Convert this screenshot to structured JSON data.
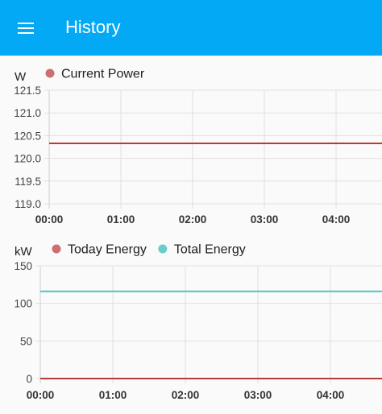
{
  "header": {
    "title": "History",
    "menu_icon": "menu-icon",
    "background": "#03a9f4"
  },
  "charts": [
    {
      "type": "line",
      "unit": "W",
      "x": [
        "00:00",
        "01:00",
        "02:00",
        "03:00",
        "04:00"
      ],
      "ylim": [
        119.0,
        121.5
      ],
      "yticks": [
        "119.0",
        "119.5",
        "120.0",
        "120.5",
        "121.0",
        "121.5"
      ],
      "series": [
        {
          "name": "Current Power",
          "color": "#c0392b",
          "legend_color": "#cd6f6f",
          "values": [
            120.33,
            120.33,
            120.33,
            120.33,
            120.33
          ]
        }
      ]
    },
    {
      "type": "line",
      "unit": "kW",
      "x": [
        "00:00",
        "01:00",
        "02:00",
        "03:00",
        "04:00"
      ],
      "ylim": [
        0,
        150
      ],
      "yticks": [
        "0",
        "50",
        "100",
        "150"
      ],
      "series": [
        {
          "name": "Today Energy",
          "color": "#b23a3a",
          "legend_color": "#cd6f6f",
          "values": [
            0,
            0,
            0,
            0,
            0
          ]
        },
        {
          "name": "Total Energy",
          "color": "#4fc3c3",
          "legend_color": "#6acccc",
          "values": [
            116,
            116,
            116,
            116,
            116
          ]
        }
      ]
    }
  ],
  "chart_data": [
    {
      "type": "line",
      "x": [
        "00:00",
        "01:00",
        "02:00",
        "03:00",
        "04:00"
      ],
      "ylabel": "W",
      "ylim": [
        119.0,
        121.5
      ],
      "grid": true,
      "legend": "top-left",
      "series": [
        {
          "name": "Current Power",
          "values": [
            120.33,
            120.33,
            120.33,
            120.33,
            120.33
          ]
        }
      ]
    },
    {
      "type": "line",
      "x": [
        "00:00",
        "01:00",
        "02:00",
        "03:00",
        "04:00"
      ],
      "ylabel": "kW",
      "ylim": [
        0,
        150
      ],
      "grid": true,
      "legend": "top-left",
      "series": [
        {
          "name": "Today Energy",
          "values": [
            0,
            0,
            0,
            0,
            0
          ]
        },
        {
          "name": "Total Energy",
          "values": [
            116,
            116,
            116,
            116,
            116
          ]
        }
      ]
    }
  ]
}
